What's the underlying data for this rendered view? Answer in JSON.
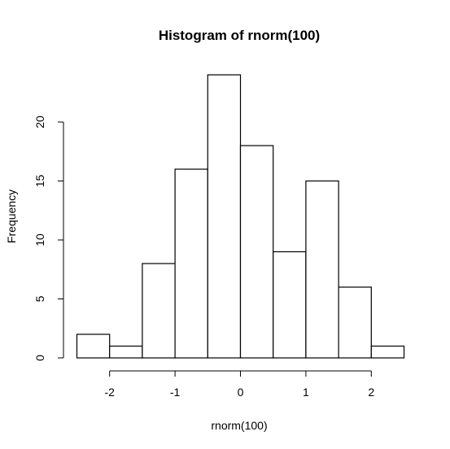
{
  "chart_data": {
    "type": "bar",
    "title": "Histogram of rnorm(100)",
    "xlabel": "rnorm(100)",
    "ylabel": "Frequency",
    "bins": [
      {
        "x0": -2.5,
        "x1": -2.0,
        "count": 2
      },
      {
        "x0": -2.0,
        "x1": -1.5,
        "count": 1
      },
      {
        "x0": -1.5,
        "x1": -1.0,
        "count": 8
      },
      {
        "x0": -1.0,
        "x1": -0.5,
        "count": 16
      },
      {
        "x0": -0.5,
        "x1": 0.0,
        "count": 24
      },
      {
        "x0": 0.0,
        "x1": 0.5,
        "count": 18
      },
      {
        "x0": 0.5,
        "x1": 1.0,
        "count": 9
      },
      {
        "x0": 1.0,
        "x1": 1.5,
        "count": 15
      },
      {
        "x0": 1.5,
        "x1": 2.0,
        "count": 6
      },
      {
        "x0": 2.0,
        "x1": 2.5,
        "count": 1
      }
    ],
    "xticks": [
      -2,
      -1,
      0,
      1,
      2
    ],
    "xtick_labels": [
      "-2",
      "-1",
      "0",
      "1",
      "2"
    ],
    "yticks": [
      0,
      5,
      10,
      15,
      20
    ],
    "ytick_labels": [
      "0",
      "5",
      "10",
      "15",
      "20"
    ],
    "xlim": [
      -2.5,
      2.5
    ],
    "ylim": [
      0,
      24
    ],
    "grid": false,
    "bar_fill": "#ffffff",
    "bar_stroke": "#000000"
  }
}
